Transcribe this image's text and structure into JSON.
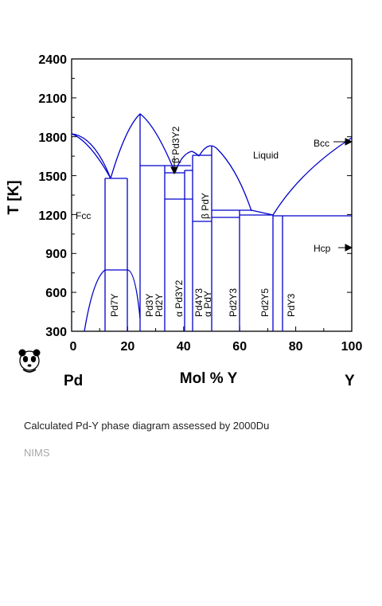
{
  "diagram": {
    "y_axis": {
      "label": "T [K]",
      "ticks": [
        "2400",
        "2100",
        "1800",
        "1500",
        "1200",
        "900",
        "600",
        "300"
      ]
    },
    "x_axis": {
      "label": "Mol % Y",
      "ticks": [
        "0",
        "20",
        "40",
        "60",
        "80",
        "100"
      ]
    },
    "endpoints": {
      "left": "Pd",
      "right": "Y"
    },
    "regions": {
      "liquid": "Liquid",
      "fcc": "Fcc",
      "bcc": "Bcc",
      "hcp": "Hcp"
    },
    "phases": {
      "pd7y": "Pd7Y",
      "pd3y": "Pd3Y",
      "pd2y": "Pd2Y",
      "alpha_pd3y2": "α Pd3Y2",
      "beta_pd3y2": "β Pd3Y2",
      "pd4y3": "Pd4Y3",
      "alpha_pdy": "α PdY",
      "beta_pdy": "β PdY",
      "pd2y3": "Pd2Y3",
      "pd2y5": "Pd2Y5",
      "pdy3": "PdY3"
    },
    "line_color": "#0000cc"
  },
  "caption": "Calculated Pd-Y phase diagram assessed by 2000Du",
  "source": "NIMS"
}
